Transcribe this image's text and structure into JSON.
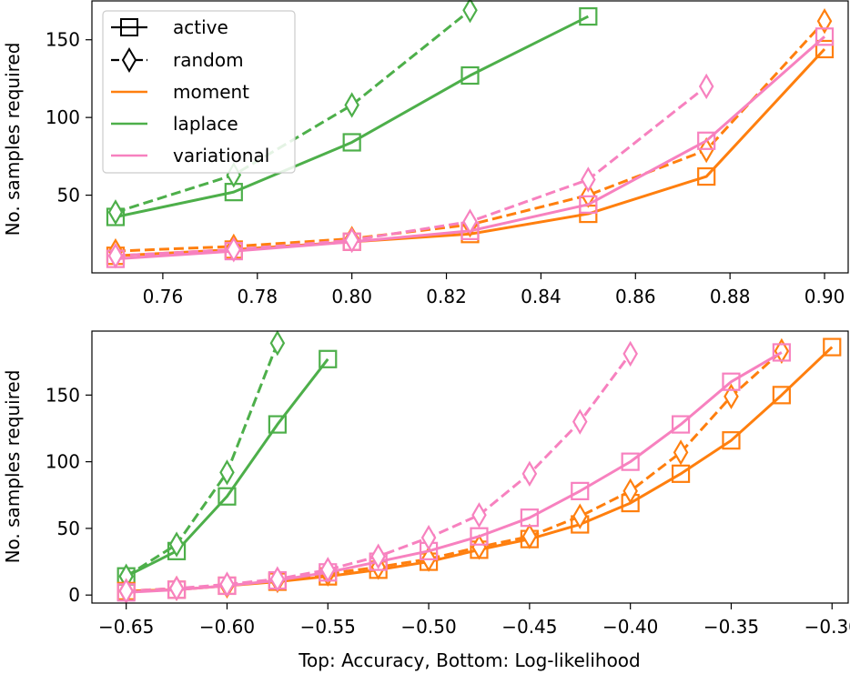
{
  "chart_data": [
    {
      "type": "line",
      "panel": "top",
      "xlabel": "",
      "ylabel": "No. samples required",
      "xlim": [
        0.745,
        0.905
      ],
      "ylim": [
        0,
        175
      ],
      "xticks": [
        0.76,
        0.78,
        0.8,
        0.82,
        0.84,
        0.86,
        0.88,
        0.9
      ],
      "xtick_labels": [
        "0.76",
        "0.78",
        "0.80",
        "0.82",
        "0.84",
        "0.86",
        "0.88",
        "0.90"
      ],
      "yticks": [
        50,
        100,
        150
      ],
      "ytick_labels": [
        "50",
        "100",
        "150"
      ],
      "legend": {
        "placement": "top-left",
        "entries": [
          {
            "label": "active",
            "style": "solid",
            "marker": "square",
            "color": "#000000"
          },
          {
            "label": "random",
            "style": "dashed",
            "marker": "diamond",
            "color": "#000000"
          },
          {
            "label": "moment",
            "style": "solid",
            "marker": "none",
            "color": "#ff7f0e"
          },
          {
            "label": "laplace",
            "style": "solid",
            "marker": "none",
            "color": "#4daf4a"
          },
          {
            "label": "variational",
            "style": "solid",
            "marker": "none",
            "color": "#f781bf"
          }
        ]
      },
      "series": [
        {
          "name": "laplace active",
          "method": "laplace",
          "sampling": "active",
          "color": "#4daf4a",
          "x": [
            0.75,
            0.775,
            0.8,
            0.825,
            0.85
          ],
          "y": [
            36,
            52,
            84,
            127,
            165
          ]
        },
        {
          "name": "laplace random",
          "method": "laplace",
          "sampling": "random",
          "color": "#4daf4a",
          "x": [
            0.75,
            0.775,
            0.8,
            0.825
          ],
          "y": [
            39,
            63,
            108,
            169
          ]
        },
        {
          "name": "moment active",
          "method": "moment",
          "sampling": "active",
          "color": "#ff7f0e",
          "x": [
            0.75,
            0.775,
            0.8,
            0.825,
            0.85,
            0.875,
            0.9
          ],
          "y": [
            11,
            15,
            20,
            25,
            38,
            62,
            144
          ]
        },
        {
          "name": "moment random",
          "method": "moment",
          "sampling": "random",
          "color": "#ff7f0e",
          "x": [
            0.75,
            0.775,
            0.8,
            0.825,
            0.85,
            0.875,
            0.9
          ],
          "y": [
            14,
            17,
            22,
            31,
            50,
            79,
            162
          ]
        },
        {
          "name": "variational active",
          "method": "variational",
          "sampling": "active",
          "color": "#f781bf",
          "x": [
            0.75,
            0.775,
            0.8,
            0.825,
            0.85,
            0.875,
            0.9
          ],
          "y": [
            9,
            14,
            20,
            27,
            44,
            85,
            152
          ]
        },
        {
          "name": "variational random",
          "method": "variational",
          "sampling": "random",
          "color": "#f781bf",
          "x": [
            0.75,
            0.775,
            0.8,
            0.825,
            0.85,
            0.875
          ],
          "y": [
            11,
            15,
            21,
            33,
            60,
            120
          ]
        }
      ]
    },
    {
      "type": "line",
      "panel": "bottom",
      "xlabel": "Top: Accuracy, Bottom: Log-likelihood",
      "ylabel": "No. samples required",
      "xlim": [
        -0.667,
        -0.292
      ],
      "ylim": [
        -6,
        198
      ],
      "xticks": [
        -0.65,
        -0.6,
        -0.55,
        -0.5,
        -0.45,
        -0.4,
        -0.35,
        -0.3
      ],
      "xtick_labels": [
        "−0.65",
        "−0.60",
        "−0.55",
        "−0.50",
        "−0.45",
        "−0.40",
        "−0.35",
        "−0.30"
      ],
      "yticks": [
        0,
        50,
        100,
        150
      ],
      "ytick_labels": [
        "0",
        "50",
        "100",
        "150"
      ],
      "series": [
        {
          "name": "laplace active",
          "method": "laplace",
          "sampling": "active",
          "color": "#4daf4a",
          "x": [
            -0.65,
            -0.625,
            -0.6,
            -0.575,
            -0.55
          ],
          "y": [
            14,
            33,
            74,
            128,
            177
          ]
        },
        {
          "name": "laplace random",
          "method": "laplace",
          "sampling": "random",
          "color": "#4daf4a",
          "x": [
            -0.65,
            -0.625,
            -0.6,
            -0.575
          ],
          "y": [
            14,
            38,
            92,
            189
          ]
        },
        {
          "name": "moment active",
          "method": "moment",
          "sampling": "active",
          "color": "#ff7f0e",
          "x": [
            -0.65,
            -0.625,
            -0.6,
            -0.575,
            -0.55,
            -0.525,
            -0.5,
            -0.475,
            -0.45,
            -0.425,
            -0.4,
            -0.375,
            -0.35,
            -0.325,
            -0.3
          ],
          "y": [
            3,
            4,
            7,
            10,
            14,
            19,
            25,
            34,
            42,
            53,
            69,
            91,
            116,
            150,
            186
          ]
        },
        {
          "name": "moment random",
          "method": "moment",
          "sampling": "random",
          "color": "#ff7f0e",
          "x": [
            -0.65,
            -0.625,
            -0.6,
            -0.575,
            -0.55,
            -0.525,
            -0.5,
            -0.475,
            -0.45,
            -0.425,
            -0.4,
            -0.375,
            -0.35,
            -0.325
          ],
          "y": [
            3,
            5,
            7,
            11,
            16,
            21,
            27,
            36,
            44,
            59,
            78,
            107,
            149,
            183
          ]
        },
        {
          "name": "variational active",
          "method": "variational",
          "sampling": "active",
          "color": "#f781bf",
          "x": [
            -0.65,
            -0.625,
            -0.6,
            -0.575,
            -0.55,
            -0.525,
            -0.5,
            -0.475,
            -0.45,
            -0.425,
            -0.4,
            -0.375,
            -0.35,
            -0.325
          ],
          "y": [
            2,
            4,
            7,
            11,
            17,
            25,
            33,
            44,
            58,
            78,
            100,
            128,
            160,
            182
          ]
        },
        {
          "name": "variational random",
          "method": "variational",
          "sampling": "random",
          "color": "#f781bf",
          "x": [
            -0.65,
            -0.625,
            -0.6,
            -0.575,
            -0.55,
            -0.525,
            -0.5,
            -0.475,
            -0.45,
            -0.425,
            -0.4
          ],
          "y": [
            3,
            5,
            8,
            12,
            19,
            29,
            43,
            60,
            91,
            130,
            181
          ]
        }
      ]
    }
  ]
}
